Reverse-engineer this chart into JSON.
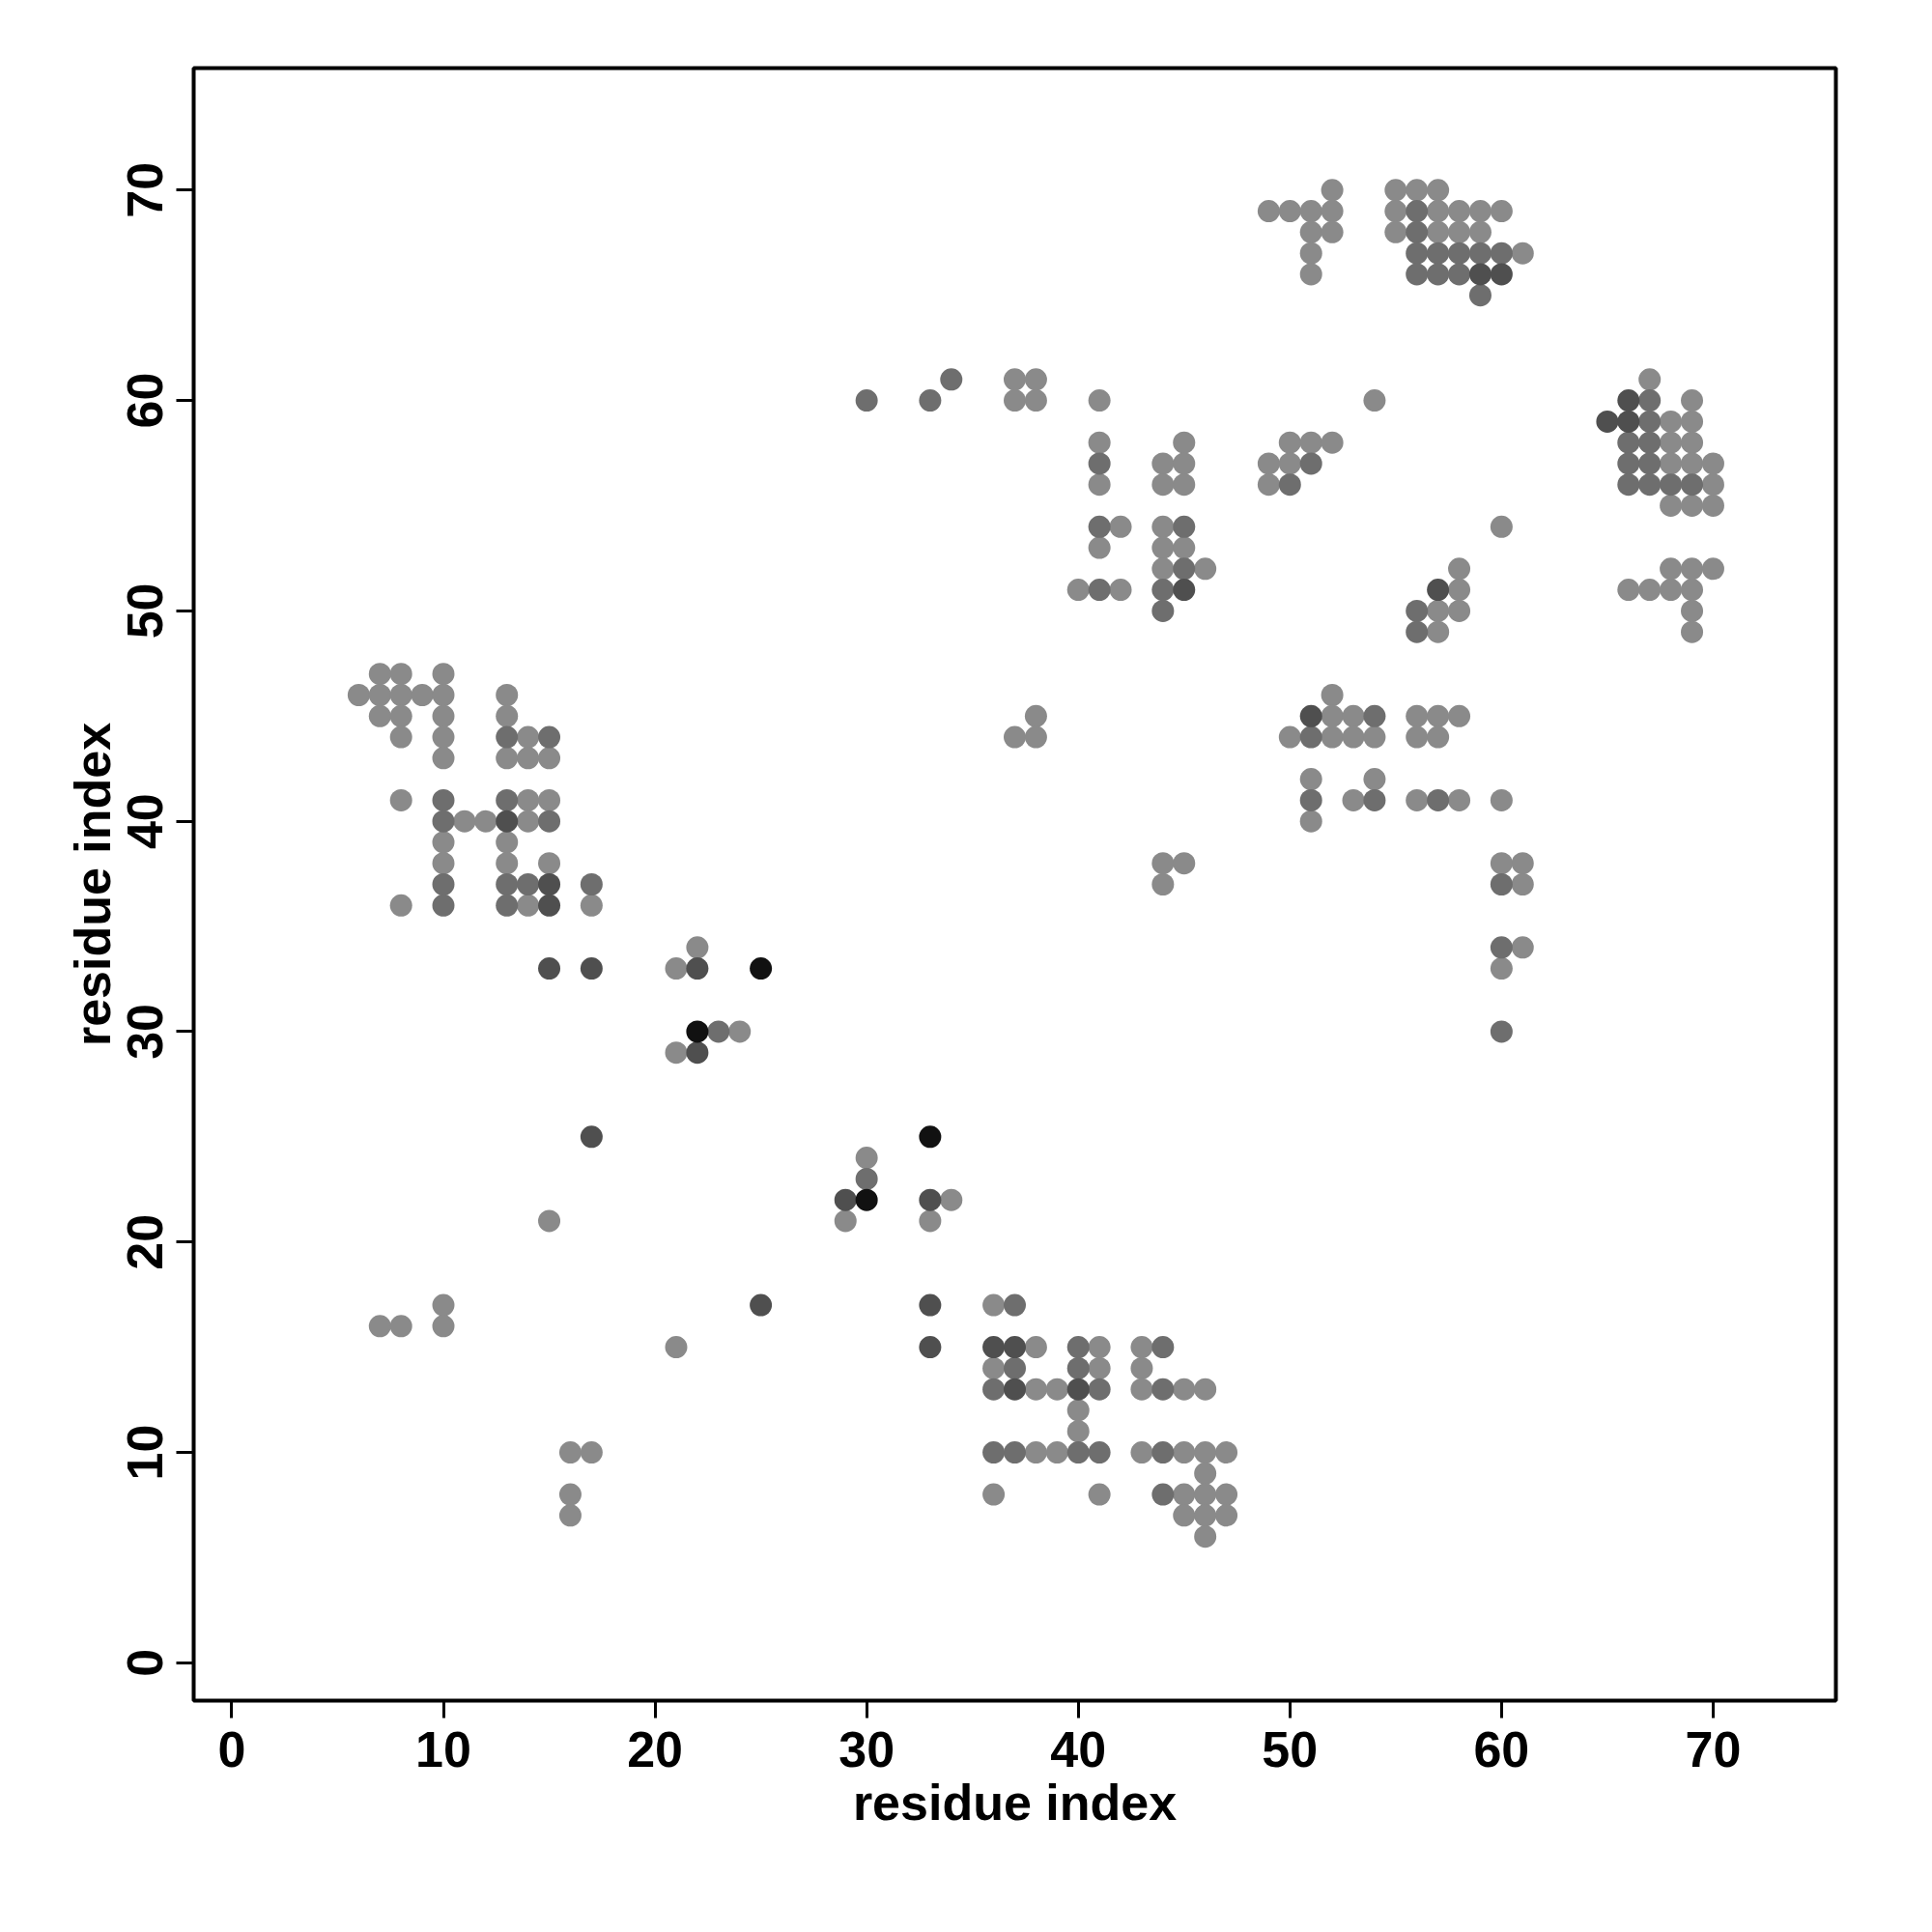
{
  "chart_data": {
    "type": "scatter",
    "xlabel": "residue index",
    "ylabel": "residue index",
    "marker": "circle",
    "grid": false,
    "xlim": [
      -1.8,
      75.8
    ],
    "ylim": [
      -1.8,
      75.8
    ],
    "xticks": [
      0,
      10,
      20,
      30,
      40,
      50,
      60,
      70
    ],
    "yticks": [
      0,
      10,
      20,
      30,
      40,
      50,
      60,
      70
    ],
    "series": [
      {
        "color": "#8a8a8a",
        "x": [
          7,
          8,
          10,
          6,
          7,
          8,
          9,
          10,
          13,
          7,
          8,
          10,
          13,
          8,
          10,
          14,
          10,
          13,
          14,
          15,
          8,
          14,
          15,
          11,
          12,
          14,
          10,
          13,
          10,
          13,
          15,
          8,
          14,
          17,
          21,
          22,
          24,
          21,
          30,
          34,
          29,
          33,
          15,
          10,
          7,
          8,
          10,
          21,
          16,
          17,
          16,
          16,
          36,
          38,
          41,
          43,
          36,
          41,
          43,
          38,
          39,
          43,
          45,
          46,
          40,
          40,
          38,
          39,
          43,
          45,
          46,
          47,
          46,
          36,
          41,
          45,
          46,
          47,
          45,
          46,
          47,
          46,
          37,
          38,
          37,
          38,
          41,
          41,
          41,
          42,
          41,
          40,
          42,
          45,
          44,
          45,
          44,
          45,
          44,
          44,
          45,
          44,
          46,
          38,
          37,
          38,
          44,
          45,
          44,
          52,
          55,
          56,
          57,
          49,
          50,
          51,
          52,
          55,
          57,
          58,
          59,
          60,
          51,
          52,
          55,
          57,
          58,
          59,
          51,
          61,
          51,
          67,
          69,
          68,
          69,
          68,
          69,
          68,
          69,
          70,
          70,
          68,
          69,
          70,
          68,
          69,
          70,
          66,
          67,
          68,
          69,
          69,
          69,
          54,
          50,
          51,
          52,
          49,
          50,
          49,
          60,
          58,
          58,
          57,
          58,
          57,
          52,
          52,
          53,
          56,
          57,
          58,
          50,
          52,
          53,
          54,
          56,
          57,
          51,
          54,
          53,
          56,
          58,
          60,
          51,
          61,
          60,
          61,
          61,
          60
        ],
        "values": [
          47,
          47,
          47,
          46,
          46,
          46,
          46,
          46,
          46,
          45,
          45,
          45,
          45,
          44,
          44,
          44,
          43,
          43,
          43,
          43,
          41,
          41,
          41,
          40,
          40,
          40,
          39,
          39,
          38,
          38,
          38,
          36,
          36,
          36,
          33,
          34,
          30,
          29,
          24,
          22,
          21,
          21,
          21,
          17,
          16,
          16,
          16,
          15,
          10,
          10,
          8,
          7,
          17,
          15,
          15,
          15,
          14,
          14,
          14,
          13,
          13,
          13,
          13,
          13,
          12,
          11,
          10,
          10,
          10,
          10,
          10,
          10,
          9,
          8,
          8,
          8,
          8,
          8,
          7,
          7,
          7,
          6,
          61,
          61,
          60,
          60,
          60,
          58,
          56,
          54,
          53,
          51,
          51,
          58,
          57,
          57,
          56,
          56,
          54,
          53,
          53,
          52,
          52,
          45,
          44,
          44,
          38,
          38,
          37,
          70,
          70,
          70,
          70,
          69,
          69,
          69,
          69,
          69,
          69,
          69,
          69,
          69,
          68,
          68,
          68,
          68,
          68,
          68,
          67,
          67,
          66,
          61,
          60,
          59,
          59,
          58,
          58,
          57,
          57,
          57,
          56,
          55,
          55,
          55,
          52,
          52,
          52,
          51,
          51,
          51,
          51,
          50,
          49,
          60,
          58,
          58,
          58,
          57,
          57,
          56,
          54,
          52,
          51,
          50,
          50,
          49,
          46,
          45,
          45,
          45,
          45,
          45,
          44,
          44,
          44,
          44,
          44,
          44,
          42,
          42,
          41,
          41,
          41,
          41,
          40,
          38,
          38,
          37,
          34,
          33
        ]
      },
      {
        "color": "#6e6e6e",
        "x": [
          13,
          15,
          10,
          13,
          10,
          15,
          10,
          13,
          14,
          17,
          10,
          13,
          23,
          30,
          37,
          37,
          40,
          40,
          44,
          36,
          41,
          44,
          36,
          37,
          40,
          41,
          44,
          44,
          41,
          41,
          45,
          41,
          44,
          44,
          45,
          56,
          56,
          56,
          57,
          58,
          59,
          60,
          56,
          57,
          58,
          59,
          67,
          67,
          66,
          67,
          66,
          67,
          66,
          67,
          68,
          69,
          51,
          50,
          56,
          56,
          51,
          54,
          51,
          54,
          57,
          60,
          60,
          60,
          34,
          33,
          30
        ],
        "values": [
          44,
          44,
          41,
          41,
          40,
          40,
          37,
          37,
          37,
          37,
          36,
          36,
          30,
          23,
          17,
          14,
          15,
          14,
          15,
          13,
          13,
          13,
          10,
          10,
          10,
          10,
          10,
          8,
          57,
          54,
          54,
          51,
          51,
          50,
          52,
          69,
          68,
          67,
          67,
          67,
          67,
          67,
          66,
          66,
          66,
          65,
          60,
          59,
          58,
          58,
          57,
          57,
          56,
          56,
          56,
          56,
          57,
          56,
          50,
          49,
          44,
          45,
          41,
          41,
          41,
          37,
          34,
          30,
          61,
          60,
          60
        ]
      },
      {
        "color": "#4f4f4f",
        "x": [
          13,
          15,
          15,
          15,
          17,
          22,
          22,
          17,
          29,
          33,
          25,
          33,
          33,
          36,
          37,
          37,
          40,
          45,
          59,
          60,
          66,
          65,
          66,
          57,
          51
        ],
        "values": [
          40,
          37,
          36,
          33,
          33,
          33,
          29,
          25,
          22,
          22,
          17,
          17,
          15,
          15,
          15,
          13,
          13,
          51,
          66,
          66,
          60,
          59,
          59,
          51,
          45
        ]
      },
      {
        "color": "#111111",
        "x": [
          25,
          22,
          30,
          33
        ],
        "values": [
          33,
          30,
          22,
          25
        ]
      }
    ]
  }
}
